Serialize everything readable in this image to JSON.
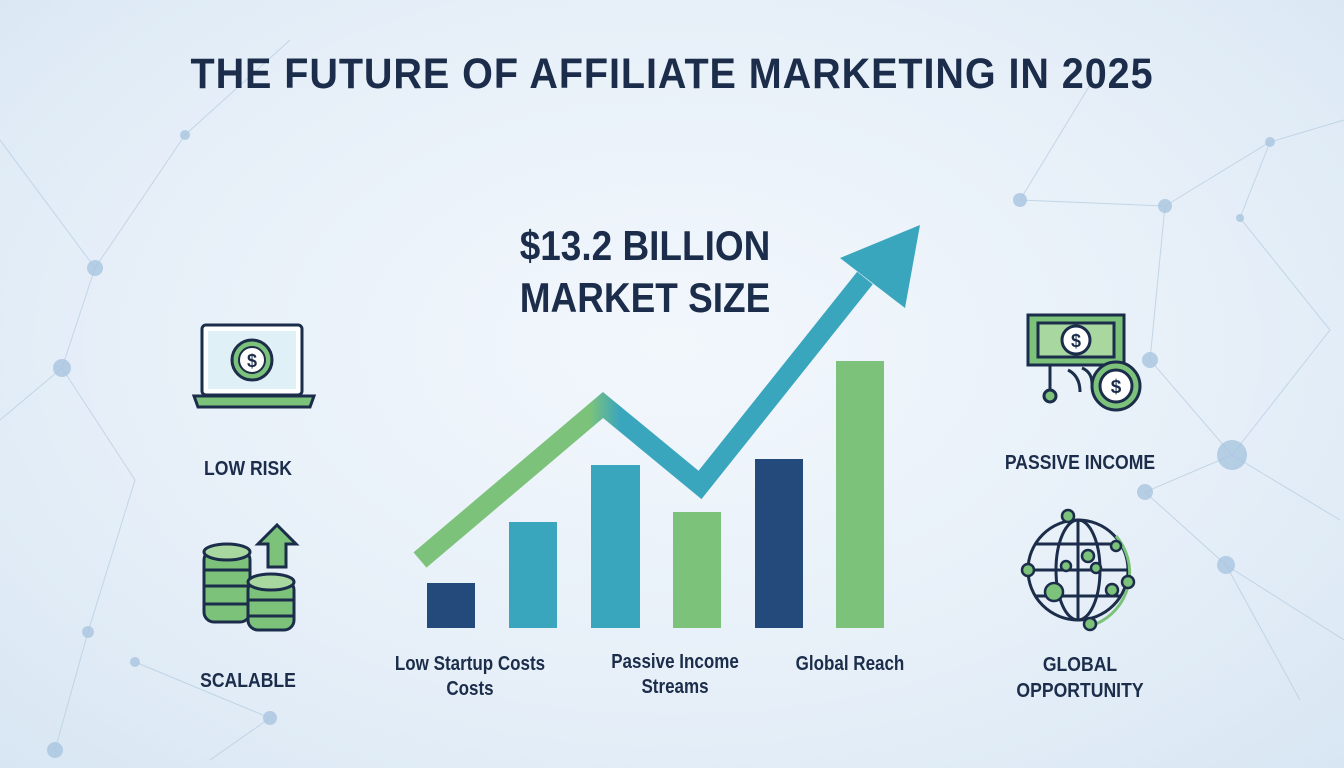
{
  "title": "THE FUTURE OF AFFILIATE MARKETING IN 2025",
  "headline": {
    "line1": "$13.2 BILLION",
    "line2": "MARKET SIZE"
  },
  "left_features": [
    {
      "label": "LOW RISK",
      "icon": "laptop-dollar-icon"
    },
    {
      "label": "SCALABLE",
      "icon": "coins-stack-arrow-icon"
    }
  ],
  "right_features": [
    {
      "label": "PASSIVE INCOME",
      "icon": "money-bill-coin-icon"
    },
    {
      "label_line1": "GLOBAL",
      "label_line2": "OPPORTUNITY",
      "icon": "globe-network-icon"
    }
  ],
  "chart_labels": [
    {
      "line1": "Low Startup Costs",
      "line2": "Costs"
    },
    {
      "line1": "Passive Income",
      "line2": "Streams"
    },
    {
      "line1": "Global Reach",
      "line2": ""
    }
  ],
  "colors": {
    "navy": "#234a7a",
    "teal": "#3aa6bd",
    "green": "#7cc27a",
    "text": "#1b2d4a"
  }
}
